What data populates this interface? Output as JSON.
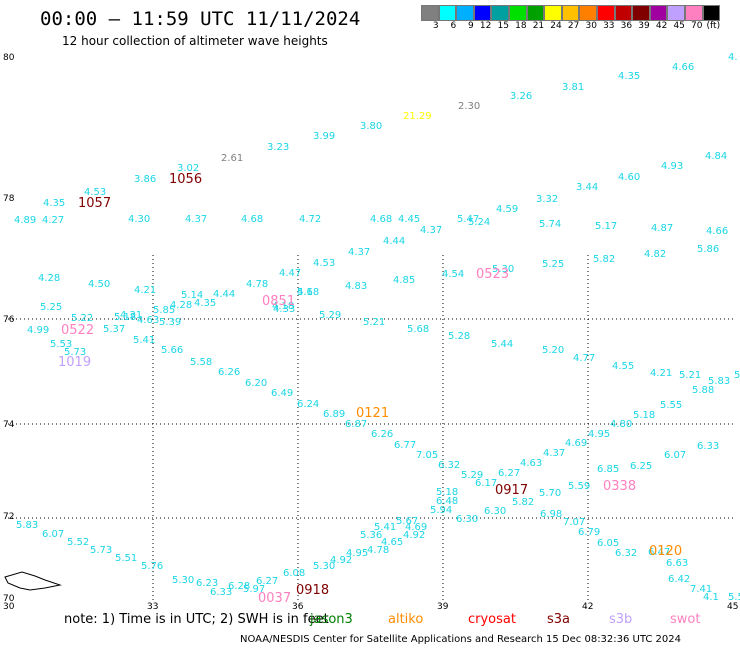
{
  "header": {
    "title": "00:00 – 11:59 UTC 11/11/2024",
    "subtitle": "12 hour collection of altimeter wave heights"
  },
  "colorbar": {
    "colors": [
      "#808080",
      "#00ffff",
      "#00b0ff",
      "#0000ff",
      "#00a0a0",
      "#00e000",
      "#00a000",
      "#ffff00",
      "#ffc000",
      "#ff8000",
      "#ff0000",
      "#c00000",
      "#800000",
      "#a000a0",
      "#c0a0ff",
      "#ff80c0",
      "#000000"
    ],
    "labels": [
      "3",
      "6",
      "9",
      "12",
      "15",
      "18",
      "21",
      "24",
      "27",
      "30",
      "33",
      "36",
      "39",
      "42",
      "45",
      "70",
      "(ft)"
    ]
  },
  "axes": {
    "lat_labels": [
      "80",
      "78",
      "76",
      "74",
      "72",
      "70"
    ],
    "lon_labels": [
      "30",
      "33",
      "36",
      "39",
      "42",
      "45"
    ]
  },
  "colors": {
    "cyan": "#1ad6e6",
    "gray": "#808080",
    "yellow": "#ffff00",
    "pink": "#ff80c0",
    "orange": "#ff8c00",
    "maroon": "#800000",
    "lavender": "#c0a0ff",
    "coast": "#000000"
  },
  "wave_heights": [
    {
      "t": "4.35",
      "c": "cyan"
    },
    {
      "t": "4.66",
      "c": "cyan"
    },
    {
      "t": "4.",
      "c": "cyan"
    },
    {
      "t": "3.81",
      "c": "cyan"
    },
    {
      "t": "3.26",
      "c": "cyan"
    },
    {
      "t": "2.30",
      "c": "gray"
    },
    {
      "t": "21.29",
      "c": "yellow"
    },
    {
      "t": "3.80",
      "c": "cyan"
    },
    {
      "t": "3.99",
      "c": "cyan"
    },
    {
      "t": "3.23",
      "c": "cyan"
    },
    {
      "t": "2.61",
      "c": "gray"
    },
    {
      "t": "3.02",
      "c": "cyan"
    },
    {
      "t": "3.86",
      "c": "cyan"
    },
    {
      "t": "4.53",
      "c": "cyan"
    },
    {
      "t": "4.35",
      "c": "cyan"
    },
    {
      "t": "4.89",
      "c": "cyan"
    },
    {
      "t": "4.27",
      "c": "cyan"
    },
    {
      "t": "4.30",
      "c": "cyan"
    },
    {
      "t": "4.37",
      "c": "cyan"
    },
    {
      "t": "4.68",
      "c": "cyan"
    },
    {
      "t": "4.72",
      "c": "cyan"
    },
    {
      "t": "4.68",
      "c": "cyan"
    },
    {
      "t": "4.45",
      "c": "cyan"
    },
    {
      "t": "4.37",
      "c": "cyan"
    },
    {
      "t": "5.47",
      "c": "cyan"
    },
    {
      "t": "5.24",
      "c": "cyan"
    },
    {
      "t": "4.59",
      "c": "cyan"
    },
    {
      "t": "3.32",
      "c": "cyan"
    },
    {
      "t": "3.44",
      "c": "cyan"
    },
    {
      "t": "4.60",
      "c": "cyan"
    },
    {
      "t": "4.93",
      "c": "cyan"
    },
    {
      "t": "4.84",
      "c": "cyan"
    },
    {
      "t": "5.74",
      "c": "cyan"
    },
    {
      "t": "5.17",
      "c": "cyan"
    },
    {
      "t": "4.87",
      "c": "cyan"
    },
    {
      "t": "4.66",
      "c": "cyan"
    },
    {
      "t": "4.44",
      "c": "cyan"
    },
    {
      "t": "4.37",
      "c": "cyan"
    },
    {
      "t": "4.53",
      "c": "cyan"
    },
    {
      "t": "4.47",
      "c": "cyan"
    },
    {
      "t": "4.28",
      "c": "cyan"
    },
    {
      "t": "4.50",
      "c": "cyan"
    },
    {
      "t": "4.21",
      "c": "cyan"
    },
    {
      "t": "5.25",
      "c": "cyan"
    },
    {
      "t": "5.22",
      "c": "cyan"
    },
    {
      "t": "5.37",
      "c": "cyan"
    },
    {
      "t": "4.99",
      "c": "cyan"
    },
    {
      "t": "5.18",
      "c": "cyan"
    },
    {
      "t": "5.39",
      "c": "cyan"
    },
    {
      "t": "4.63",
      "c": "cyan"
    },
    {
      "t": "5.14",
      "c": "cyan"
    },
    {
      "t": "4.44",
      "c": "cyan"
    },
    {
      "t": "4.78",
      "c": "cyan"
    },
    {
      "t": "4.83",
      "c": "cyan"
    },
    {
      "t": "4.85",
      "c": "cyan"
    },
    {
      "t": "4.54",
      "c": "cyan"
    },
    {
      "t": "5.30",
      "c": "cyan"
    },
    {
      "t": "5.25",
      "c": "cyan"
    },
    {
      "t": "5.82",
      "c": "cyan"
    },
    {
      "t": "4.82",
      "c": "cyan"
    },
    {
      "t": "5.86",
      "c": "cyan"
    },
    {
      "t": "5.18",
      "c": "cyan"
    },
    {
      "t": "4.33",
      "c": "cyan"
    },
    {
      "t": "5.29",
      "c": "cyan"
    },
    {
      "t": "5.21",
      "c": "cyan"
    },
    {
      "t": "5.68",
      "c": "cyan"
    },
    {
      "t": "5.28",
      "c": "cyan"
    },
    {
      "t": "5.44",
      "c": "cyan"
    },
    {
      "t": "5.20",
      "c": "cyan"
    },
    {
      "t": "4.77",
      "c": "cyan"
    },
    {
      "t": "4.55",
      "c": "cyan"
    },
    {
      "t": "4.21",
      "c": "cyan"
    },
    {
      "t": "5.53",
      "c": "cyan"
    },
    {
      "t": "5.73",
      "c": "cyan"
    },
    {
      "t": "5.41",
      "c": "cyan"
    },
    {
      "t": "5.66",
      "c": "cyan"
    },
    {
      "t": "5.58",
      "c": "cyan"
    },
    {
      "t": "6.26",
      "c": "cyan"
    },
    {
      "t": "6.20",
      "c": "cyan"
    },
    {
      "t": "6.49",
      "c": "cyan"
    },
    {
      "t": "6.24",
      "c": "cyan"
    },
    {
      "t": "6.89",
      "c": "cyan"
    },
    {
      "t": "6.87",
      "c": "cyan"
    },
    {
      "t": "6.26",
      "c": "cyan"
    },
    {
      "t": "6.77",
      "c": "cyan"
    },
    {
      "t": "7.05",
      "c": "cyan"
    },
    {
      "t": "6.32",
      "c": "cyan"
    },
    {
      "t": "5.29",
      "c": "cyan"
    },
    {
      "t": "5.21",
      "c": "cyan"
    },
    {
      "t": "5.83",
      "c": "cyan"
    },
    {
      "t": "5.96",
      "c": "cyan"
    },
    {
      "t": "5.88",
      "c": "cyan"
    },
    {
      "t": "5.55",
      "c": "cyan"
    },
    {
      "t": "5.18",
      "c": "cyan"
    },
    {
      "t": "4.80",
      "c": "cyan"
    },
    {
      "t": "4.95",
      "c": "cyan"
    },
    {
      "t": "4.69",
      "c": "cyan"
    },
    {
      "t": "4.37",
      "c": "cyan"
    },
    {
      "t": "4.63",
      "c": "cyan"
    },
    {
      "t": "6.27",
      "c": "cyan"
    },
    {
      "t": "6.17",
      "c": "cyan"
    },
    {
      "t": "6.33",
      "c": "cyan"
    },
    {
      "t": "6.07",
      "c": "cyan"
    },
    {
      "t": "6.25",
      "c": "cyan"
    },
    {
      "t": "6.85",
      "c": "cyan"
    },
    {
      "t": "5.59",
      "c": "cyan"
    },
    {
      "t": "5.70",
      "c": "cyan"
    },
    {
      "t": "5.82",
      "c": "cyan"
    },
    {
      "t": "6.30",
      "c": "cyan"
    },
    {
      "t": "6.30",
      "c": "cyan"
    },
    {
      "t": "5.94",
      "c": "cyan"
    },
    {
      "t": "4.69",
      "c": "cyan"
    },
    {
      "t": "6.48",
      "c": "cyan"
    },
    {
      "t": "6.98",
      "c": "cyan"
    },
    {
      "t": "7.07",
      "c": "cyan"
    },
    {
      "t": "6.79",
      "c": "cyan"
    },
    {
      "t": "6.05",
      "c": "cyan"
    },
    {
      "t": "6.32",
      "c": "cyan"
    },
    {
      "t": "6.47",
      "c": "cyan"
    },
    {
      "t": "6.63",
      "c": "cyan"
    },
    {
      "t": "6.42",
      "c": "cyan"
    },
    {
      "t": "7.41",
      "c": "cyan"
    },
    {
      "t": "4.1",
      "c": "cyan"
    },
    {
      "t": "5.59",
      "c": "cyan"
    },
    {
      "t": "5.67",
      "c": "cyan"
    },
    {
      "t": "4.92",
      "c": "cyan"
    },
    {
      "t": "4.65",
      "c": "cyan"
    },
    {
      "t": "4.78",
      "c": "cyan"
    },
    {
      "t": "5.41",
      "c": "cyan"
    },
    {
      "t": "5.36",
      "c": "cyan"
    },
    {
      "t": "4.95",
      "c": "cyan"
    },
    {
      "t": "4.92",
      "c": "cyan"
    },
    {
      "t": "5.30",
      "c": "cyan"
    },
    {
      "t": "6.08",
      "c": "cyan"
    },
    {
      "t": "6.27",
      "c": "cyan"
    },
    {
      "t": "6.28",
      "c": "cyan"
    },
    {
      "t": "5.97",
      "c": "cyan"
    },
    {
      "t": "6.23",
      "c": "cyan"
    },
    {
      "t": "6.33",
      "c": "cyan"
    },
    {
      "t": "5.30",
      "c": "cyan"
    },
    {
      "t": "5.76",
      "c": "cyan"
    },
    {
      "t": "5.51",
      "c": "cyan"
    },
    {
      "t": "5.73",
      "c": "cyan"
    },
    {
      "t": "5.52",
      "c": "cyan"
    },
    {
      "t": "6.07",
      "c": "cyan"
    },
    {
      "t": "5.83",
      "c": "cyan"
    },
    {
      "t": "5.85",
      "c": "cyan"
    },
    {
      "t": "4.28",
      "c": "cyan"
    },
    {
      "t": "4.35",
      "c": "cyan"
    },
    {
      "t": "4.31",
      "c": "cyan"
    },
    {
      "t": "4.18",
      "c": "cyan"
    },
    {
      "t": "4.6",
      "c": "cyan"
    },
    {
      "t": "5.18",
      "c": "cyan"
    },
    {
      "t": "3.86",
      "c": "cyan"
    },
    {
      "t": "4.54",
      "c": "cyan"
    }
  ],
  "pass_times": [
    {
      "t": "1057",
      "c": "maroon"
    },
    {
      "t": "1056",
      "c": "maroon"
    },
    {
      "t": "0522",
      "c": "pink"
    },
    {
      "t": "1019",
      "c": "lavender"
    },
    {
      "t": "0851",
      "c": "pink"
    },
    {
      "t": "0523",
      "c": "pink"
    },
    {
      "t": "0121",
      "c": "orange"
    },
    {
      "t": "0917",
      "c": "maroon"
    },
    {
      "t": "0338",
      "c": "pink"
    },
    {
      "t": "0120",
      "c": "orange"
    },
    {
      "t": "0918",
      "c": "maroon"
    },
    {
      "t": "0037",
      "c": "pink"
    }
  ],
  "footer": {
    "note": "note:  1) Time is in UTC;  2) SWH is in feet",
    "legend": [
      {
        "label": "jason3",
        "color": "#008000"
      },
      {
        "label": "altiko",
        "color": "#ff8c00"
      },
      {
        "label": "cryosat",
        "color": "#ff0000"
      },
      {
        "label": "s3a",
        "color": "#800000"
      },
      {
        "label": "s3b",
        "color": "#c0a0ff"
      },
      {
        "label": "swot",
        "color": "#ff80c0"
      }
    ],
    "credit": "NOAA/NESDIS Center for Satellite Applications and Research    15 Dec 08:32:36 UTC 2024"
  }
}
